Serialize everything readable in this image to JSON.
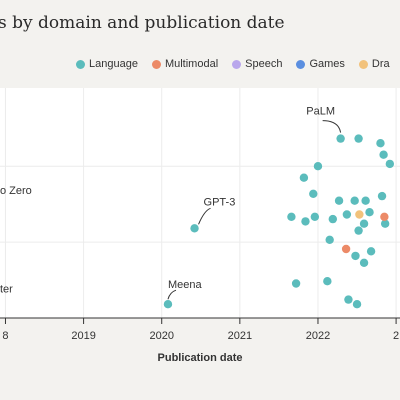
{
  "title": "s by domain and publication date",
  "legend": [
    {
      "label": "Language",
      "color": "#5bbcbc"
    },
    {
      "label": "Multimodal",
      "color": "#ec8a67"
    },
    {
      "label": "Speech",
      "color": "#b9a7ec"
    },
    {
      "label": "Games",
      "color": "#5b8fe0"
    },
    {
      "label": "Dra",
      "color": "#f2c27b"
    }
  ],
  "chart_data": {
    "type": "scatter",
    "xlabel": "Publication date",
    "x_ticks": [
      "8",
      "2019",
      "2020",
      "2021",
      "2022",
      "2"
    ],
    "x_tick_values": [
      2018,
      2019,
      2020,
      2021,
      2022,
      2023
    ],
    "xlim": [
      2017.93,
      2023.05
    ],
    "grid": true,
    "series": [
      {
        "name": "Language",
        "color": "#5bbcbc",
        "points": [
          {
            "x": 2020.08,
            "y": 0.06,
            "label": "Meena"
          },
          {
            "x": 2020.42,
            "y": 0.39,
            "label": "GPT-3"
          },
          {
            "x": 2022.29,
            "y": 0.78,
            "label": "PaLM"
          },
          {
            "x": 2021.66,
            "y": 0.44
          },
          {
            "x": 2021.72,
            "y": 0.15
          },
          {
            "x": 2021.82,
            "y": 0.61
          },
          {
            "x": 2021.84,
            "y": 0.42
          },
          {
            "x": 2021.94,
            "y": 0.54
          },
          {
            "x": 2021.96,
            "y": 0.44
          },
          {
            "x": 2022.0,
            "y": 0.66
          },
          {
            "x": 2022.12,
            "y": 0.16
          },
          {
            "x": 2022.15,
            "y": 0.34
          },
          {
            "x": 2022.19,
            "y": 0.43
          },
          {
            "x": 2022.27,
            "y": 0.51
          },
          {
            "x": 2022.37,
            "y": 0.45
          },
          {
            "x": 2022.39,
            "y": 0.08
          },
          {
            "x": 2022.47,
            "y": 0.51
          },
          {
            "x": 2022.48,
            "y": 0.27
          },
          {
            "x": 2022.5,
            "y": 0.06
          },
          {
            "x": 2022.52,
            "y": 0.78
          },
          {
            "x": 2022.52,
            "y": 0.38
          },
          {
            "x": 2022.59,
            "y": 0.24
          },
          {
            "x": 2022.59,
            "y": 0.41
          },
          {
            "x": 2022.61,
            "y": 0.51
          },
          {
            "x": 2022.66,
            "y": 0.46
          },
          {
            "x": 2022.68,
            "y": 0.29
          },
          {
            "x": 2022.8,
            "y": 0.76
          },
          {
            "x": 2022.82,
            "y": 0.53
          },
          {
            "x": 2022.84,
            "y": 0.71
          },
          {
            "x": 2022.86,
            "y": 0.41
          },
          {
            "x": 2022.92,
            "y": 0.67
          }
        ]
      },
      {
        "name": "Multimodal",
        "color": "#ec8a67",
        "points": [
          {
            "x": 2022.36,
            "y": 0.3
          },
          {
            "x": 2022.85,
            "y": 0.44
          }
        ]
      },
      {
        "name": "Dra",
        "color": "#f2c27b",
        "points": [
          {
            "x": 2022.53,
            "y": 0.45
          }
        ]
      }
    ],
    "annotations": [
      {
        "text": "o Zero",
        "x": 2017.93,
        "y": 0.54
      },
      {
        "text": "ter",
        "x": 2017.93,
        "y": 0.11
      }
    ]
  }
}
